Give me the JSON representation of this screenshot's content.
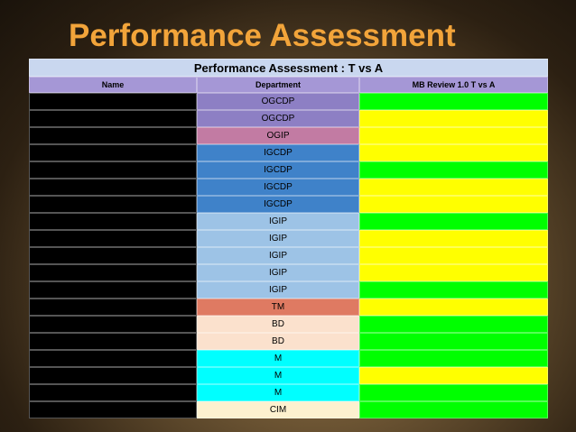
{
  "header": {
    "title": "Performance Assessment"
  },
  "table": {
    "title": "Performance Assessment : T vs A",
    "title_color": "#c9d7ef",
    "header_color": "#a597d6",
    "columns": [
      "Name",
      "Department",
      "MB Review 1.0 T vs A"
    ],
    "rows": [
      {
        "department": "OGCDP",
        "department_color": "#8d7fc4",
        "status_color": "#00ff00"
      },
      {
        "department": "OGCDP",
        "department_color": "#8d7fc4",
        "status_color": "#ffff00"
      },
      {
        "department": "OGIP",
        "department_color": "#c27ba3",
        "status_color": "#ffff00"
      },
      {
        "department": "IGCDP",
        "department_color": "#3f82c9",
        "status_color": "#ffff00"
      },
      {
        "department": "IGCDP",
        "department_color": "#3f82c9",
        "status_color": "#00ff00"
      },
      {
        "department": "IGCDP",
        "department_color": "#3f82c9",
        "status_color": "#ffff00"
      },
      {
        "department": "IGCDP",
        "department_color": "#3f82c9",
        "status_color": "#ffff00"
      },
      {
        "department": "IGIP",
        "department_color": "#9dc3e6",
        "status_color": "#00ff00"
      },
      {
        "department": "IGIP",
        "department_color": "#9dc3e6",
        "status_color": "#ffff00"
      },
      {
        "department": "IGIP",
        "department_color": "#9dc3e6",
        "status_color": "#ffff00"
      },
      {
        "department": "IGIP",
        "department_color": "#9dc3e6",
        "status_color": "#ffff00"
      },
      {
        "department": "IGIP",
        "department_color": "#9dc3e6",
        "status_color": "#00ff00"
      },
      {
        "department": "TM",
        "department_color": "#df7a62",
        "status_color": "#ffff00"
      },
      {
        "department": "BD",
        "department_color": "#fbe1cd",
        "status_color": "#00ff00"
      },
      {
        "department": "BD",
        "department_color": "#fbe1cd",
        "status_color": "#00ff00"
      },
      {
        "department": "M",
        "department_color": "#00ffff",
        "status_color": "#00ff00"
      },
      {
        "department": "M",
        "department_color": "#00ffff",
        "status_color": "#ffff00"
      },
      {
        "department": "M",
        "department_color": "#00ffff",
        "status_color": "#00ff00"
      },
      {
        "department": "CIM",
        "department_color": "#fdf1cf",
        "status_color": "#00ff00"
      }
    ]
  }
}
